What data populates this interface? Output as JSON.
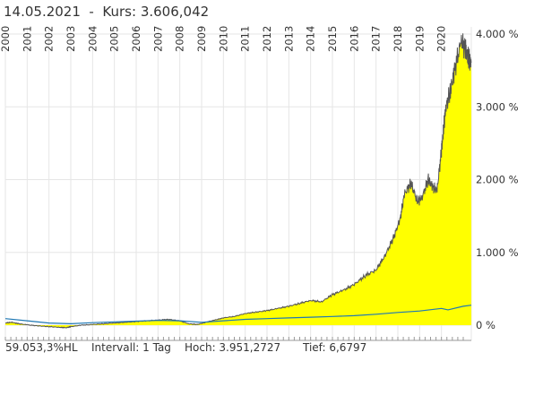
{
  "header": {
    "date": "14.05.2021",
    "separator": "  -  ",
    "kurs_label": "Kurs:",
    "kurs_value": "3.606,042"
  },
  "footer": {
    "performance": "59.053,3%HL",
    "interval": "Intervall: 1 Tag",
    "high": "Hoch: 3.951,2727",
    "low": "Tief: 6,6797"
  },
  "colors": {
    "area_fill": "#ffff00",
    "price_line": "#555555",
    "benchmark_line": "#1f78b4",
    "grid": "#e6e6e6",
    "axis": "#333333"
  },
  "chart_data": {
    "type": "area",
    "x_tick_labels": [
      "2000",
      "2001",
      "2002",
      "2003",
      "2004",
      "2005",
      "2006",
      "2007",
      "2008",
      "2009",
      "2010",
      "2011",
      "2012",
      "2013",
      "2014",
      "2015",
      "2016",
      "2017",
      "2018",
      "2019",
      "2020"
    ],
    "y_tick_labels": [
      "0 %",
      "1.000 %",
      "2.000 %",
      "3.000 %",
      "4.000 %"
    ],
    "ylim": [
      -20,
      4000
    ],
    "xlim": [
      2000.0,
      2021.37
    ],
    "grid": true,
    "series": [
      {
        "style": "area+line",
        "x": [
          2000.0,
          2000.3,
          2000.6,
          2001.0,
          2001.5,
          2002.0,
          2002.5,
          2002.8,
          2003.0,
          2003.5,
          2004.0,
          2004.5,
          2005.0,
          2005.5,
          2006.0,
          2006.5,
          2007.0,
          2007.5,
          2008.0,
          2008.4,
          2008.8,
          2009.2,
          2009.6,
          2010.0,
          2010.5,
          2011.0,
          2011.5,
          2012.0,
          2012.5,
          2013.0,
          2013.5,
          2014.0,
          2014.5,
          2015.0,
          2015.5,
          2016.0,
          2016.5,
          2017.0,
          2017.4,
          2017.8,
          2018.1,
          2018.3,
          2018.6,
          2018.9,
          2019.1,
          2019.4,
          2019.6,
          2019.8,
          2020.0,
          2020.1,
          2020.2,
          2020.4,
          2020.6,
          2020.9,
          2021.1,
          2021.25,
          2021.37
        ],
        "y": [
          30,
          40,
          20,
          5,
          -10,
          -20,
          -30,
          -35,
          -20,
          0,
          10,
          20,
          30,
          40,
          50,
          60,
          70,
          80,
          60,
          20,
          10,
          40,
          70,
          100,
          120,
          160,
          180,
          200,
          230,
          260,
          300,
          340,
          320,
          420,
          480,
          560,
          680,
          760,
          950,
          1200,
          1450,
          1800,
          1950,
          1700,
          1750,
          2000,
          1900,
          1850,
          2400,
          2700,
          3000,
          3200,
          3500,
          3900,
          3800,
          3650,
          3606
        ]
      },
      {
        "style": "line",
        "x": [
          2000.0,
          2001.0,
          2002.0,
          2003.0,
          2004.0,
          2005.0,
          2006.0,
          2007.0,
          2008.0,
          2009.0,
          2010.0,
          2011.0,
          2012.0,
          2013.0,
          2014.0,
          2015.0,
          2016.0,
          2017.0,
          2018.0,
          2019.0,
          2020.0,
          2020.3,
          2021.0,
          2021.37
        ],
        "y": [
          90,
          60,
          30,
          20,
          35,
          45,
          55,
          65,
          60,
          40,
          60,
          80,
          90,
          100,
          110,
          120,
          130,
          150,
          175,
          195,
          230,
          210,
          260,
          275
        ]
      }
    ]
  }
}
